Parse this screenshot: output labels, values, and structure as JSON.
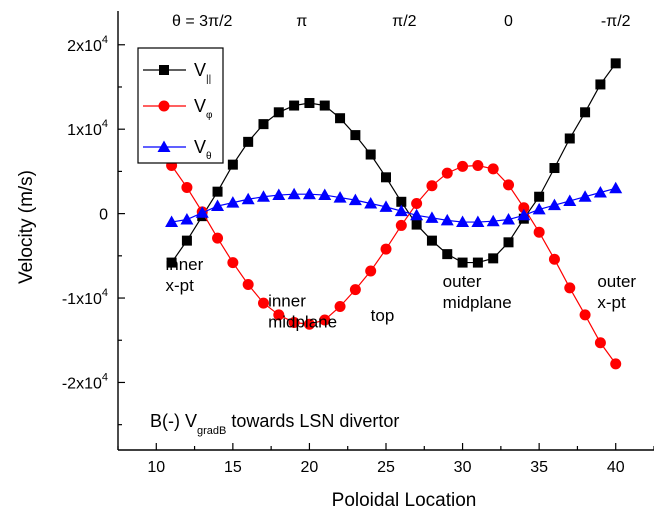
{
  "chart_data": {
    "type": "line",
    "xlabel": "Poloidal Location",
    "ylabel": "Velocity (m/s)",
    "xlim": [
      7.5,
      42.5
    ],
    "ylim": [
      -28000,
      24000
    ],
    "x_ticks": [
      10,
      15,
      20,
      25,
      30,
      35,
      40
    ],
    "y_ticks": [
      {
        "value": 20000,
        "base": "2x10",
        "exp": "4"
      },
      {
        "value": 10000,
        "base": "1x10",
        "exp": "4"
      },
      {
        "value": 0,
        "base": "0",
        "exp": ""
      },
      {
        "value": -10000,
        "base": "-1x10",
        "exp": "4"
      },
      {
        "value": -20000,
        "base": "-2x10",
        "exp": "4"
      }
    ],
    "theta_labels": [
      {
        "text": "θ = 3π/2",
        "x": 13
      },
      {
        "text": "π",
        "x": 19.5
      },
      {
        "text": "π/2",
        "x": 26.2
      },
      {
        "text": "0",
        "x": 33
      },
      {
        "text": "-π/2",
        "x": 40
      }
    ],
    "legend_position": "top-left",
    "series": [
      {
        "name": "V",
        "subscript": "||",
        "color": "#000000",
        "marker": "square",
        "x": [
          11,
          12,
          13,
          14,
          15,
          16,
          17,
          18,
          19,
          20,
          21,
          22,
          23,
          24,
          25,
          26,
          27,
          28,
          29,
          30,
          31,
          32,
          33,
          34,
          35,
          36,
          37,
          38,
          39,
          40
        ],
        "values": [
          -5800,
          -3200,
          -300,
          2600,
          5800,
          8500,
          10600,
          12000,
          12800,
          13100,
          12800,
          11300,
          9300,
          7000,
          4300,
          1400,
          -1300,
          -3200,
          -4800,
          -5800,
          -5800,
          -5300,
          -3400,
          -600,
          2000,
          5400,
          8900,
          12000,
          15300,
          17800
        ]
      },
      {
        "name": "V",
        "subscript": "φ",
        "color": "#ff0000",
        "marker": "circle",
        "x": [
          11,
          12,
          13,
          14,
          15,
          16,
          17,
          18,
          19,
          20,
          21,
          22,
          23,
          24,
          25,
          26,
          27,
          28,
          29,
          30,
          31,
          32,
          33,
          34,
          35,
          36,
          37,
          38,
          39,
          40
        ],
        "values": [
          5700,
          3100,
          200,
          -2900,
          -5800,
          -8400,
          -10600,
          -12000,
          -12900,
          -13100,
          -12600,
          -11000,
          -9000,
          -6800,
          -4200,
          -1400,
          1200,
          3300,
          4800,
          5600,
          5700,
          5300,
          3400,
          700,
          -2200,
          -5400,
          -8800,
          -12000,
          -15300,
          -17800
        ]
      },
      {
        "name": "V",
        "subscript": "θ",
        "color": "#0000ff",
        "marker": "triangle",
        "x": [
          11,
          12,
          13,
          14,
          15,
          16,
          17,
          18,
          19,
          20,
          21,
          22,
          23,
          24,
          25,
          26,
          27,
          28,
          29,
          30,
          31,
          32,
          33,
          34,
          35,
          36,
          37,
          38,
          39,
          40
        ],
        "values": [
          -1000,
          -700,
          100,
          900,
          1300,
          1700,
          2000,
          2200,
          2300,
          2300,
          2200,
          1900,
          1600,
          1200,
          800,
          300,
          -200,
          -500,
          -800,
          -1000,
          -1000,
          -900,
          -700,
          -200,
          500,
          1000,
          1500,
          2000,
          2500,
          3000
        ]
      }
    ],
    "annotations": [
      {
        "lines": [
          "inner",
          "x-pt"
        ],
        "x": 10.6,
        "y": -6700
      },
      {
        "lines": [
          "inner",
          "midplane"
        ],
        "x": 17.3,
        "y": -11000
      },
      {
        "lines": [
          "top"
        ],
        "x": 24.0,
        "y": -12700
      },
      {
        "lines": [
          "outer",
          "midplane"
        ],
        "x": 28.7,
        "y": -8700
      },
      {
        "lines": [
          "outer",
          "x-pt"
        ],
        "x": 38.8,
        "y": -8700
      }
    ],
    "caption": {
      "prefix": "B(-)  V",
      "subscript": "gradB",
      "suffix": " towards LSN divertor"
    }
  }
}
